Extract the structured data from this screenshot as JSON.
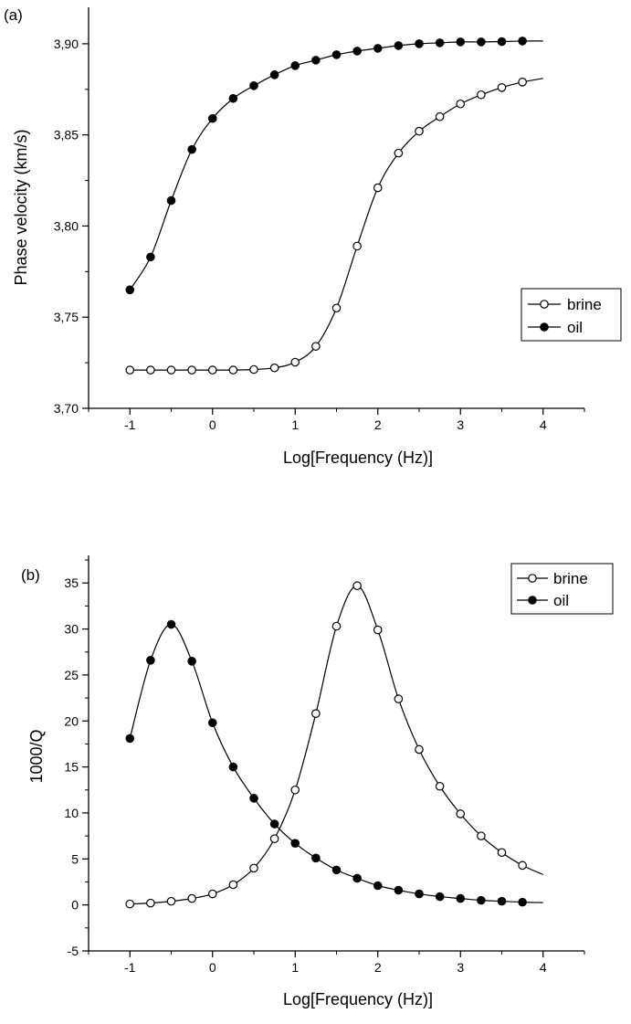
{
  "chart_data": [
    {
      "type": "line",
      "panel_label": "(a)",
      "title": "",
      "xlabel": "Log[Frequency (Hz)]",
      "ylabel": "Phase velocity (km/s)",
      "xlim": [
        -1.5,
        4.5
      ],
      "ylim": [
        3.7,
        3.92
      ],
      "xticks": [
        -1,
        0,
        1,
        2,
        3,
        4
      ],
      "xtick_labels": [
        "-1",
        "0",
        "1",
        "2",
        "3",
        "4"
      ],
      "yticks": [
        3.7,
        3.75,
        3.8,
        3.85,
        3.9
      ],
      "ytick_labels": [
        "3,70",
        "3,75",
        "3,80",
        "3,85",
        "3,90"
      ],
      "grid": false,
      "legend_position": "right",
      "x": [
        -1,
        -0.75,
        -0.5,
        -0.25,
        0,
        0.25,
        0.5,
        0.75,
        1,
        1.25,
        1.5,
        1.75,
        2,
        2.25,
        2.5,
        2.75,
        3,
        3.25,
        3.5,
        3.75
      ],
      "series": [
        {
          "name": "brine",
          "marker": "open-circle",
          "values": [
            3.721,
            3.721,
            3.721,
            3.721,
            3.721,
            3.721,
            3.7213,
            3.7222,
            3.7253,
            3.734,
            3.755,
            3.789,
            3.821,
            3.84,
            3.852,
            3.86,
            3.867,
            3.872,
            3.876,
            3.879
          ],
          "curve_end": [
            4.0,
            3.881
          ]
        },
        {
          "name": "oil",
          "marker": "filled-circle",
          "values": [
            3.765,
            3.783,
            3.814,
            3.842,
            3.859,
            3.87,
            3.877,
            3.883,
            3.888,
            3.891,
            3.894,
            3.896,
            3.8975,
            3.899,
            3.9,
            3.9005,
            3.901,
            3.901,
            3.9012,
            3.9015
          ],
          "curve_end": [
            4.0,
            3.9015
          ]
        }
      ]
    },
    {
      "type": "line",
      "panel_label": "(b)",
      "title": "",
      "xlabel": "Log[Frequency (Hz)]",
      "ylabel": "1000/Q",
      "xlim": [
        -1.5,
        4.5
      ],
      "ylim": [
        -5,
        38
      ],
      "xticks": [
        -1,
        0,
        1,
        2,
        3,
        4
      ],
      "xtick_labels": [
        "-1",
        "0",
        "1",
        "2",
        "3",
        "4"
      ],
      "yticks": [
        -5,
        0,
        5,
        10,
        15,
        20,
        25,
        30,
        35
      ],
      "ytick_labels": [
        "-5",
        "0",
        "5",
        "10",
        "15",
        "20",
        "25",
        "30",
        "35"
      ],
      "grid": false,
      "legend_position": "top-right",
      "x": [
        -1,
        -0.75,
        -0.5,
        -0.25,
        0,
        0.25,
        0.5,
        0.75,
        1,
        1.25,
        1.5,
        1.75,
        2,
        2.25,
        2.5,
        2.75,
        3,
        3.25,
        3.5,
        3.75
      ],
      "series": [
        {
          "name": "brine",
          "marker": "open-circle",
          "values": [
            0.1,
            0.2,
            0.4,
            0.7,
            1.2,
            2.2,
            4.0,
            7.2,
            12.5,
            20.8,
            30.3,
            34.7,
            29.9,
            22.4,
            16.9,
            12.9,
            9.9,
            7.5,
            5.7,
            4.3
          ],
          "curve_end": [
            4.0,
            3.3
          ]
        },
        {
          "name": "oil",
          "marker": "filled-circle",
          "values": [
            18.1,
            26.6,
            30.5,
            26.5,
            19.8,
            15.0,
            11.6,
            8.8,
            6.7,
            5.1,
            3.8,
            2.9,
            2.1,
            1.6,
            1.2,
            0.9,
            0.7,
            0.5,
            0.4,
            0.3
          ],
          "curve_end": [
            4.0,
            0.25
          ]
        }
      ]
    }
  ]
}
